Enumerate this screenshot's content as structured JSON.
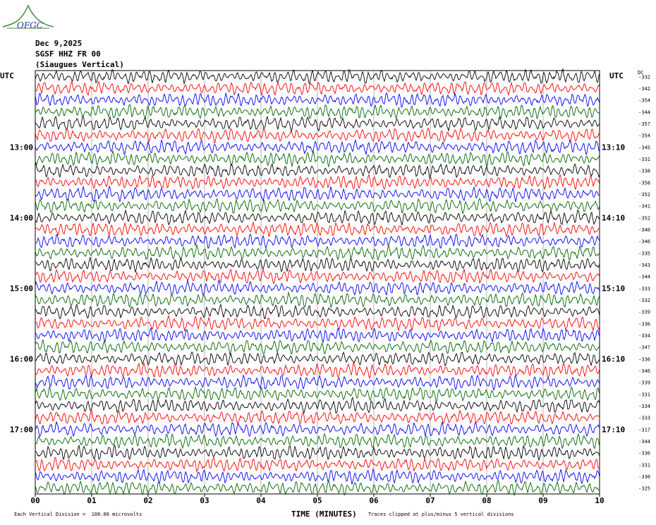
{
  "logo": {
    "name": "OFGC-logo",
    "text": "OFGC"
  },
  "header": {
    "date": "Dec 9,2025",
    "station": "SGSF HHZ FR 00",
    "description": "(Siaugues Vertical)"
  },
  "left_tz": "UTC",
  "right_tz": "UTC",
  "dc_label": "DC",
  "footer": {
    "left": "Each Vertical Division =  100.00 microvolts",
    "right": "Traces clipped at plus/minus 5 vertical divisions"
  },
  "colors": [
    "#000000",
    "#ff0000",
    "#0000ff",
    "#006400"
  ],
  "chart_data": {
    "type": "line",
    "xlabel": "TIME (MINUTES)",
    "xlim": [
      0,
      10
    ],
    "x_ticks": [
      "00",
      "01",
      "02",
      "03",
      "04",
      "05",
      "06",
      "07",
      "08",
      "09",
      "10"
    ],
    "left_time_labels": [
      "13:00",
      "14:00",
      "15:00",
      "16:00",
      "17:00"
    ],
    "right_time_labels": [
      "13:10",
      "14:10",
      "15:10",
      "16:10",
      "17:10"
    ],
    "time_label_trace_index": [
      6,
      12,
      18,
      24,
      30
    ],
    "trace_count": 36,
    "trace_offsets": [
      -332,
      -342,
      -354,
      -344,
      -357,
      -354,
      -345,
      -331,
      -338,
      -358,
      -352,
      -341,
      -352,
      -340,
      -346,
      -335,
      -343,
      -344,
      -333,
      -332,
      -339,
      -336,
      -334,
      -347,
      -336,
      -346,
      -339,
      -331,
      -334,
      -333,
      -317,
      -344,
      -336,
      -331,
      -330,
      -325
    ]
  }
}
